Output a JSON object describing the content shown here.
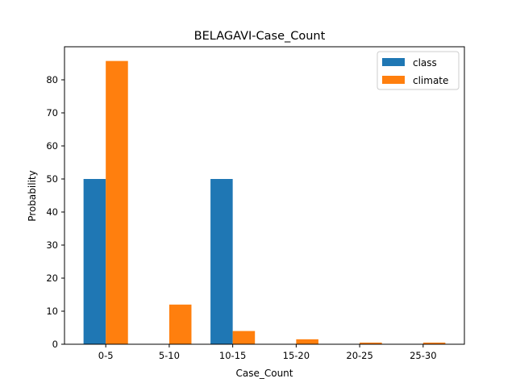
{
  "chart_data": {
    "type": "bar",
    "title": "BELAGAVI-Case_Count",
    "xlabel": "Case_Count",
    "ylabel": "Probability",
    "categories": [
      "0-5",
      "5-10",
      "10-15",
      "15-20",
      "20-25",
      "25-30"
    ],
    "series": [
      {
        "name": "class",
        "color": "#1f77b4",
        "values": [
          50,
          0,
          50,
          0,
          0,
          0
        ]
      },
      {
        "name": "climate",
        "color": "#ff7f0e",
        "values": [
          85.7,
          12.0,
          4.0,
          1.5,
          0.5,
          0.5
        ]
      }
    ],
    "ylim": [
      0,
      90
    ],
    "yticks": [
      0,
      10,
      20,
      30,
      40,
      50,
      60,
      70,
      80
    ],
    "grid": false,
    "legend_position": "top-right"
  }
}
